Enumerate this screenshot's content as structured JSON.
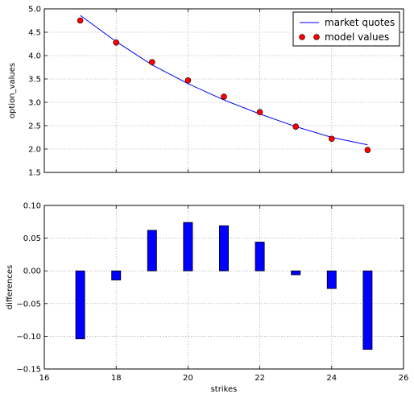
{
  "chart_data": [
    {
      "type": "line",
      "ylabel": "option_values",
      "xlim": [
        16,
        26
      ],
      "ylim": [
        1.5,
        5.0
      ],
      "yticks": [
        "1.5",
        "2.0",
        "2.5",
        "3.0",
        "3.5",
        "4.0",
        "4.5",
        "5.0"
      ],
      "grid": true,
      "legend": "top-right",
      "series": [
        {
          "name": "market quotes",
          "style": "line",
          "color": "#0000ff",
          "x": [
            17,
            18,
            19,
            20,
            21,
            22,
            23,
            24,
            25
          ],
          "y": [
            4.86,
            4.3,
            3.8,
            3.4,
            3.05,
            2.75,
            2.48,
            2.25,
            2.09
          ]
        },
        {
          "name": "model values",
          "style": "markers",
          "color": "#ff0000",
          "x": [
            17,
            18,
            19,
            20,
            21,
            22,
            23,
            24,
            25
          ],
          "y": [
            4.75,
            4.28,
            3.86,
            3.47,
            3.12,
            2.79,
            2.48,
            2.22,
            1.98
          ]
        }
      ]
    },
    {
      "type": "bar",
      "xlabel": "strikes",
      "ylabel": "differences",
      "xlim": [
        16,
        26
      ],
      "ylim": [
        -0.15,
        0.1
      ],
      "xticks": [
        "16",
        "18",
        "20",
        "22",
        "24",
        "26"
      ],
      "yticks": [
        "−0.15",
        "−0.10",
        "−0.05",
        "0.00",
        "0.05",
        "0.10"
      ],
      "grid": true,
      "color": "#0000ff",
      "x": [
        17,
        18,
        19,
        20,
        21,
        22,
        23,
        24,
        25
      ],
      "values": [
        -0.104,
        -0.014,
        0.062,
        0.074,
        0.069,
        0.044,
        -0.006,
        -0.027,
        -0.12
      ]
    }
  ]
}
